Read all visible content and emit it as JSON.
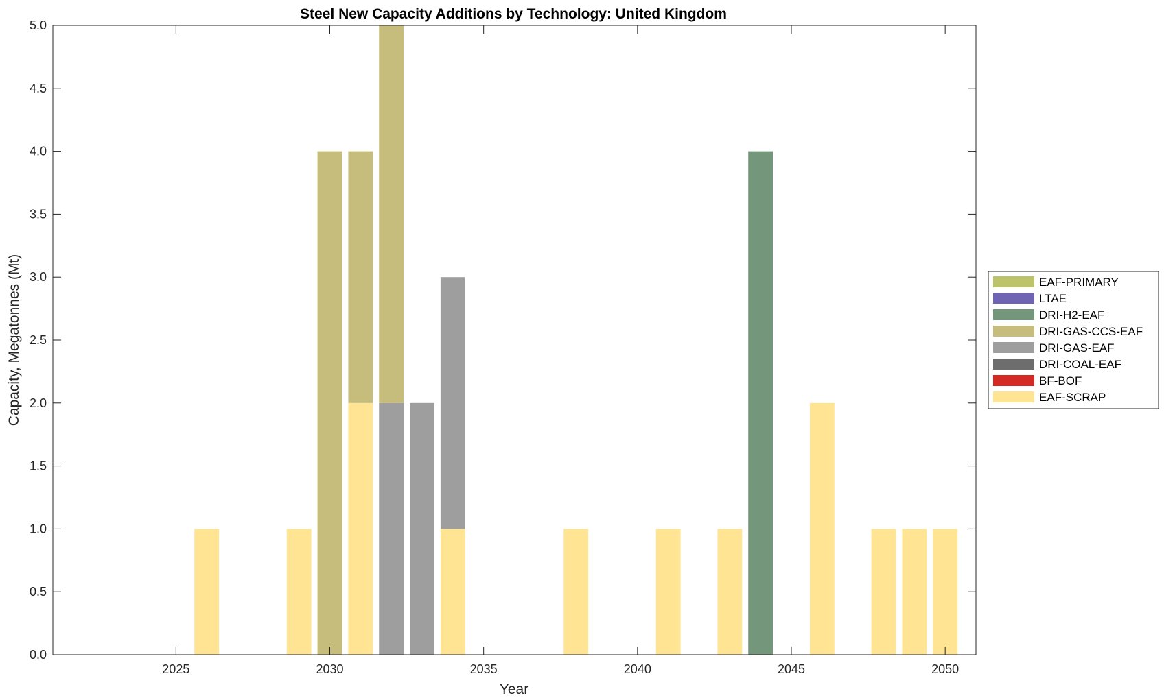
{
  "chart_data": {
    "type": "bar",
    "stacked": true,
    "title": "Steel New Capacity Additions by Technology: United Kingdom",
    "xlabel": "Year",
    "ylabel": "Capacity, Megatonnes (Mt)",
    "xlim": [
      2021,
      2051
    ],
    "ylim": [
      0,
      5
    ],
    "xticks": [
      "2025",
      "2030",
      "2035",
      "2040",
      "2045",
      "2050"
    ],
    "yticks": [
      "0.0",
      "0.5",
      "1.0",
      "1.5",
      "2.0",
      "2.5",
      "3.0",
      "3.5",
      "4.0",
      "4.5",
      "5.0"
    ],
    "grid": false,
    "legend_position": "right",
    "x": [
      2022,
      2023,
      2024,
      2025,
      2026,
      2027,
      2028,
      2029,
      2030,
      2031,
      2032,
      2033,
      2034,
      2035,
      2036,
      2037,
      2038,
      2039,
      2040,
      2041,
      2042,
      2043,
      2044,
      2045,
      2046,
      2047,
      2048,
      2049,
      2050
    ],
    "series": [
      {
        "name": "EAF-SCRAP",
        "color": "#FFE494",
        "values": [
          0,
          0,
          0,
          0,
          1,
          0,
          0,
          1,
          0,
          2,
          0,
          0,
          1,
          0,
          0,
          0,
          1,
          0,
          0,
          1,
          0,
          1,
          0,
          0,
          2,
          0,
          1,
          1,
          1
        ]
      },
      {
        "name": "BF-BOF",
        "color": "#D42A26",
        "values": [
          0,
          0,
          0,
          0,
          0,
          0,
          0,
          0,
          0,
          0,
          0,
          0,
          0,
          0,
          0,
          0,
          0,
          0,
          0,
          0,
          0,
          0,
          0,
          0,
          0,
          0,
          0,
          0,
          0
        ]
      },
      {
        "name": "DRI-COAL-EAF",
        "color": "#6D6D6D",
        "values": [
          0,
          0,
          0,
          0,
          0,
          0,
          0,
          0,
          0,
          0,
          0,
          0,
          0,
          0,
          0,
          0,
          0,
          0,
          0,
          0,
          0,
          0,
          0,
          0,
          0,
          0,
          0,
          0,
          0
        ]
      },
      {
        "name": "DRI-GAS-EAF",
        "color": "#9E9E9E",
        "values": [
          0,
          0,
          0,
          0,
          0,
          0,
          0,
          0,
          0,
          0,
          2,
          2,
          2,
          0,
          0,
          0,
          0,
          0,
          0,
          0,
          0,
          0,
          0,
          0,
          0,
          0,
          0,
          0,
          0
        ]
      },
      {
        "name": "DRI-GAS-CCS-EAF",
        "color": "#C6BC7B",
        "values": [
          0,
          0,
          0,
          0,
          0,
          0,
          0,
          0,
          4,
          2,
          3,
          0,
          0,
          0,
          0,
          0,
          0,
          0,
          0,
          0,
          0,
          0,
          0,
          0,
          0,
          0,
          0,
          0,
          0
        ]
      },
      {
        "name": "DRI-H2-EAF",
        "color": "#74977B",
        "values": [
          0,
          0,
          0,
          0,
          0,
          0,
          0,
          0,
          0,
          0,
          0,
          0,
          0,
          0,
          0,
          0,
          0,
          0,
          0,
          0,
          0,
          0,
          4,
          0,
          0,
          0,
          0,
          0,
          0
        ]
      },
      {
        "name": "LTAE",
        "color": "#6F64B4",
        "values": [
          0,
          0,
          0,
          0,
          0,
          0,
          0,
          0,
          0,
          0,
          0,
          0,
          0,
          0,
          0,
          0,
          0,
          0,
          0,
          0,
          0,
          0,
          0,
          0,
          0,
          0,
          0,
          0,
          0
        ]
      },
      {
        "name": "EAF-PRIMARY",
        "color": "#BCC36A",
        "values": [
          0,
          0,
          0,
          0,
          0,
          0,
          0,
          0,
          0,
          0,
          0,
          0,
          0,
          0,
          0,
          0,
          0,
          0,
          0,
          0,
          0,
          0,
          0,
          0,
          0,
          0,
          0,
          0,
          0
        ]
      }
    ],
    "legend_order": [
      "EAF-PRIMARY",
      "LTAE",
      "DRI-H2-EAF",
      "DRI-GAS-CCS-EAF",
      "DRI-GAS-EAF",
      "DRI-COAL-EAF",
      "BF-BOF",
      "EAF-SCRAP"
    ]
  }
}
